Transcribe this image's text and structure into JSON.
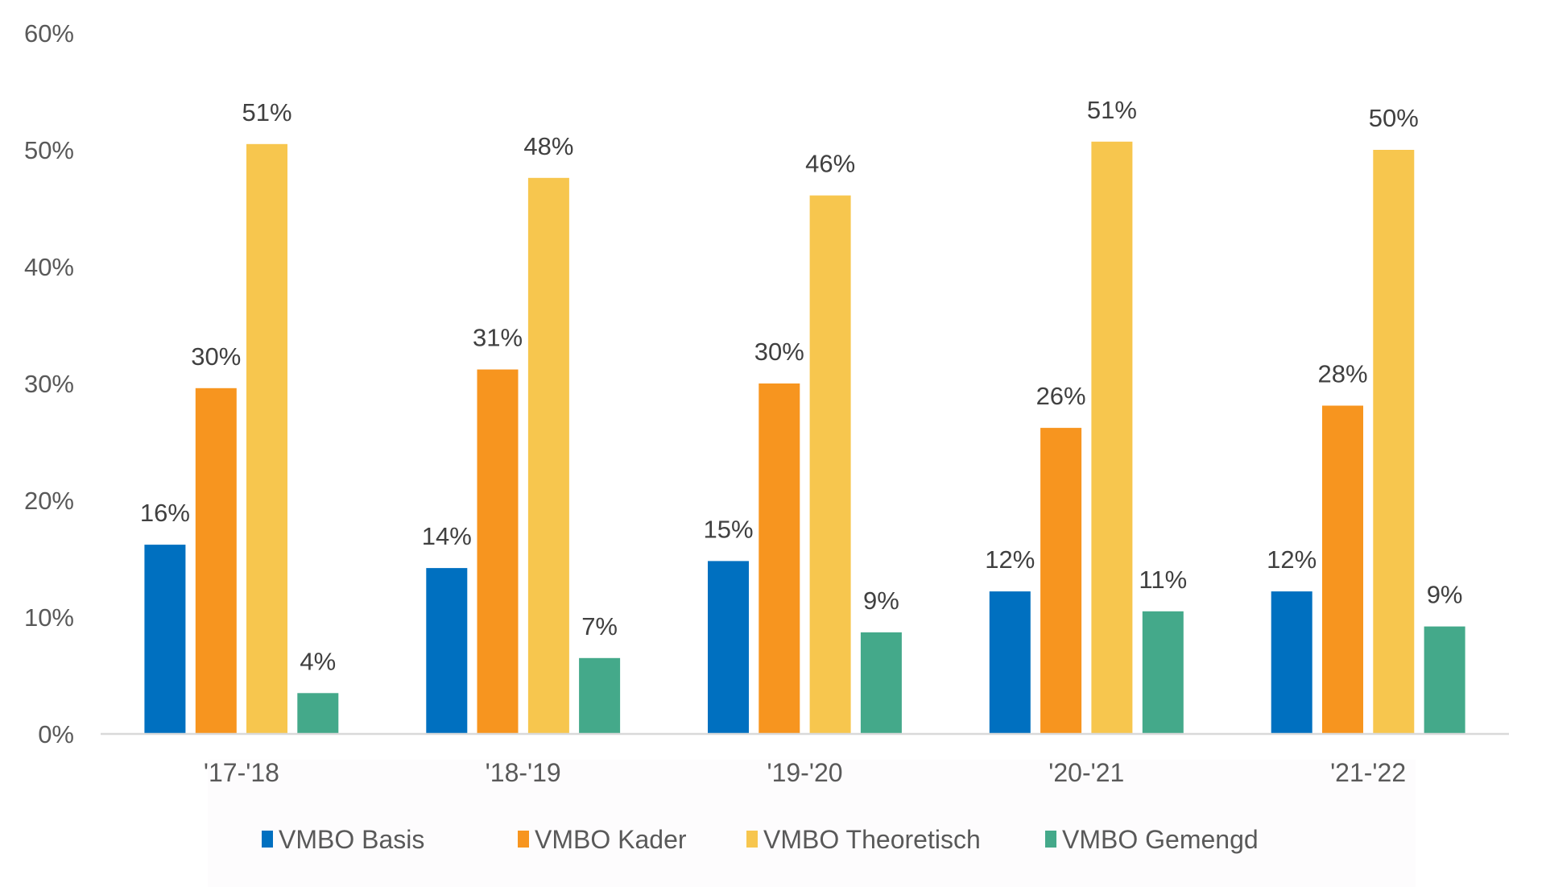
{
  "chart_data": {
    "type": "bar",
    "title": "",
    "xlabel": "",
    "ylabel": "",
    "ylim": [
      0,
      60
    ],
    "y_ticks": [
      "0%",
      "10%",
      "20%",
      "30%",
      "40%",
      "50%",
      "60%"
    ],
    "y_tick_values": [
      0,
      10,
      20,
      30,
      40,
      50,
      60
    ],
    "grid": false,
    "legend_position": "bottom",
    "categories": [
      "'17-'18",
      "'18-'19",
      "'19-'20",
      "'20-'21",
      "'21-'22"
    ],
    "series": [
      {
        "name": "VMBO Basis",
        "color": "#0070C0",
        "values": [
          16.2,
          14.2,
          14.8,
          12.2,
          12.2
        ],
        "labels": [
          "16%",
          "14%",
          "15%",
          "12%",
          "12%"
        ]
      },
      {
        "name": "VMBO Kader",
        "color": "#F7951F",
        "values": [
          29.6,
          31.2,
          30.0,
          26.2,
          28.1
        ],
        "labels": [
          "30%",
          "31%",
          "30%",
          "26%",
          "28%"
        ]
      },
      {
        "name": "VMBO Theoretisch",
        "color": "#F7C64E",
        "values": [
          50.5,
          47.6,
          46.1,
          50.7,
          50.0
        ],
        "labels": [
          "51%",
          "48%",
          "46%",
          "51%",
          "50%"
        ]
      },
      {
        "name": "VMBO Gemengd",
        "color": "#44A98A",
        "values": [
          3.5,
          6.5,
          8.7,
          10.5,
          9.2
        ],
        "labels": [
          "4%",
          "7%",
          "9%",
          "11%",
          "9%"
        ]
      }
    ]
  }
}
